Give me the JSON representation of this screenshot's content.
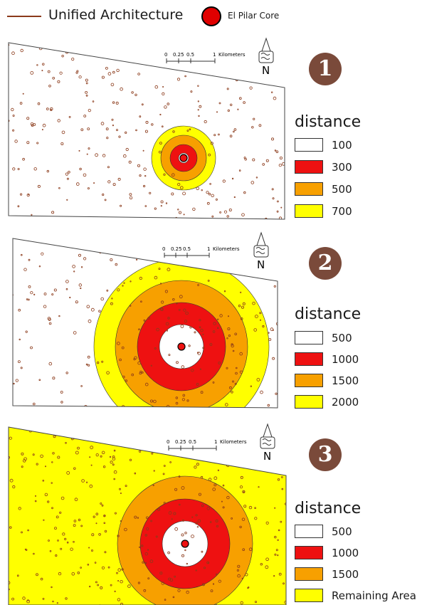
{
  "legend": {
    "line_label": "Unified Architecture",
    "line_color": "#8b3a1a",
    "core_label": "El Pilar Core",
    "core_color": "#e00000"
  },
  "scalebar": {
    "ticks": [
      "0",
      "0.25",
      "0.5",
      "1"
    ],
    "unit": "Kilometers"
  },
  "north_arrow": {
    "letter": "N",
    "icon": "north-arrow-glyph-icon"
  },
  "colors": {
    "white": "#ffffff",
    "red": "#ee1111",
    "orange": "#f7a000",
    "yellow": "#ffff00",
    "dots": "#8b3a1a"
  },
  "panels": [
    {
      "number": "1",
      "legend_title": "distance",
      "classes": [
        {
          "label": "100",
          "color": "#ffffff"
        },
        {
          "label": "300",
          "color": "#ee1111"
        },
        {
          "label": "500",
          "color": "#f7a000"
        },
        {
          "label": "700",
          "color": "#ffff00"
        }
      ]
    },
    {
      "number": "2",
      "legend_title": "distance",
      "classes": [
        {
          "label": "500",
          "color": "#ffffff"
        },
        {
          "label": "1000",
          "color": "#ee1111"
        },
        {
          "label": "1500",
          "color": "#f7a000"
        },
        {
          "label": "2000",
          "color": "#ffff00"
        }
      ]
    },
    {
      "number": "3",
      "legend_title": "distance",
      "classes": [
        {
          "label": "500",
          "color": "#ffffff"
        },
        {
          "label": "1000",
          "color": "#ee1111"
        },
        {
          "label": "1500",
          "color": "#f7a000"
        },
        {
          "label": "Remaining Area",
          "color": "#ffff00"
        }
      ]
    }
  ]
}
